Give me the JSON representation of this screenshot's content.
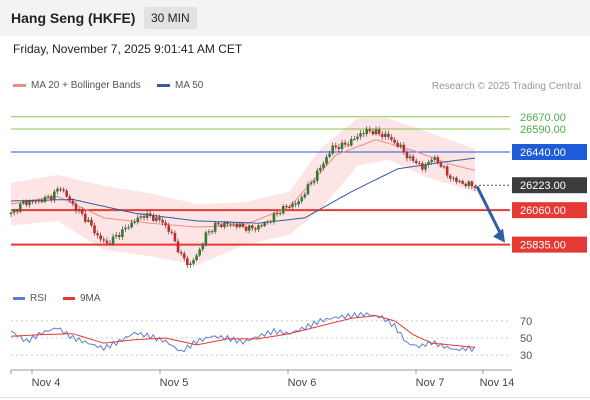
{
  "header": {
    "title": "Hang Seng (HKFE)",
    "timeframe": "30 MIN",
    "datetime": "Friday, November 7, 2025 9:01:41 AM CET"
  },
  "legend": {
    "items": [
      {
        "label": "MA 20 + Bollinger Bands",
        "color": "#f28b82"
      },
      {
        "label": "MA 50",
        "color": "#3a5a9c"
      }
    ],
    "credit": "Research © 2025 Trading Central"
  },
  "colors": {
    "up": "#2e7d32",
    "down": "#c62828",
    "band": "#fde0e0",
    "ma20": "#f28b82",
    "ma50": "#3a5a9c",
    "support": "#e53935",
    "resist_green": "#8bc34a",
    "pivot_blue": "#1e5bd6",
    "current_bg": "#3c3c3c",
    "arrow": "#2f5f9e",
    "rsi": "#5b7fd6",
    "rsi_ma": "#e53935"
  },
  "chart_data": {
    "type": "candlestick",
    "x_tick_labels": [
      "Nov 4",
      "Nov 5",
      "Nov 6",
      "Nov 7",
      "Nov 14"
    ],
    "price_range": [
      25545,
      26845
    ],
    "levels": [
      {
        "value": 26670.0,
        "label": "26670.00",
        "kind": "resistance"
      },
      {
        "value": 26590.0,
        "label": "26590.00",
        "kind": "resistance"
      },
      {
        "value": 26440.0,
        "label": "26440.00",
        "kind": "pivot"
      },
      {
        "value": 26223.0,
        "label": "26223.00",
        "kind": "current"
      },
      {
        "value": 26060.0,
        "label": "26060.00",
        "kind": "support"
      },
      {
        "value": 25835.0,
        "label": "25835.00",
        "kind": "support"
      }
    ],
    "target_arrow": {
      "from": 26215,
      "to": 25835
    },
    "anchors": [
      [
        0,
        26035
      ],
      [
        4,
        26110
      ],
      [
        9,
        26120
      ],
      [
        13,
        26150
      ],
      [
        16,
        26210
      ],
      [
        19,
        26120
      ],
      [
        22,
        26050
      ],
      [
        25,
        25985
      ],
      [
        28,
        25890
      ],
      [
        31,
        25840
      ],
      [
        34,
        25890
      ],
      [
        37,
        25940
      ],
      [
        40,
        25990
      ],
      [
        43,
        26030
      ],
      [
        46,
        26010
      ],
      [
        49,
        25985
      ],
      [
        52,
        25900
      ],
      [
        55,
        25760
      ],
      [
        58,
        25700
      ],
      [
        61,
        25800
      ],
      [
        63,
        25900
      ],
      [
        66,
        25960
      ],
      [
        69,
        25970
      ],
      [
        72,
        25970
      ],
      [
        75,
        25950
      ],
      [
        78,
        25940
      ],
      [
        81,
        25960
      ],
      [
        84,
        26000
      ],
      [
        87,
        26060
      ],
      [
        90,
        26090
      ],
      [
        93,
        26110
      ],
      [
        95,
        26180
      ],
      [
        98,
        26270
      ],
      [
        101,
        26370
      ],
      [
        104,
        26470
      ],
      [
        107,
        26480
      ],
      [
        110,
        26510
      ],
      [
        113,
        26560
      ],
      [
        116,
        26580
      ],
      [
        119,
        26560
      ],
      [
        122,
        26540
      ],
      [
        124,
        26500
      ],
      [
        126,
        26470
      ],
      [
        129,
        26390
      ],
      [
        131,
        26380
      ],
      [
        133,
        26330
      ],
      [
        136,
        26400
      ],
      [
        139,
        26360
      ],
      [
        141,
        26290
      ],
      [
        144,
        26250
      ],
      [
        147,
        26230
      ],
      [
        150,
        26220
      ]
    ],
    "candles_count": 151,
    "ma20": [
      [
        0,
        26100
      ],
      [
        15,
        26150
      ],
      [
        30,
        26010
      ],
      [
        45,
        25975
      ],
      [
        60,
        25950
      ],
      [
        75,
        25960
      ],
      [
        90,
        26080
      ],
      [
        105,
        26420
      ],
      [
        118,
        26520
      ],
      [
        130,
        26450
      ],
      [
        142,
        26360
      ],
      [
        150,
        26320
      ]
    ],
    "ma50": [
      [
        0,
        26120
      ],
      [
        20,
        26130
      ],
      [
        40,
        26040
      ],
      [
        60,
        25990
      ],
      [
        80,
        25975
      ],
      [
        95,
        26010
      ],
      [
        110,
        26180
      ],
      [
        125,
        26330
      ],
      [
        140,
        26375
      ],
      [
        150,
        26400
      ]
    ],
    "band_upper": [
      [
        0,
        26240
      ],
      [
        15,
        26290
      ],
      [
        30,
        26220
      ],
      [
        45,
        26170
      ],
      [
        60,
        26100
      ],
      [
        75,
        26110
      ],
      [
        90,
        26180
      ],
      [
        100,
        26460
      ],
      [
        112,
        26660
      ],
      [
        122,
        26660
      ],
      [
        135,
        26570
      ],
      [
        150,
        26460
      ]
    ],
    "band_lower": [
      [
        0,
        25960
      ],
      [
        15,
        25990
      ],
      [
        30,
        25800
      ],
      [
        45,
        25760
      ],
      [
        60,
        25700
      ],
      [
        75,
        25830
      ],
      [
        90,
        25900
      ],
      [
        100,
        26060
      ],
      [
        112,
        26350
      ],
      [
        122,
        26390
      ],
      [
        135,
        26270
      ],
      [
        150,
        26180
      ]
    ],
    "rsi": {
      "legend": [
        {
          "label": "RSI",
          "color": "#5b7fd6"
        },
        {
          "label": "9MA",
          "color": "#e53935"
        }
      ],
      "range": [
        15,
        85
      ],
      "ticks": [
        70,
        50,
        30
      ],
      "rsi_points": [
        [
          0,
          58
        ],
        [
          5,
          46
        ],
        [
          10,
          56
        ],
        [
          15,
          62
        ],
        [
          20,
          50
        ],
        [
          25,
          44
        ],
        [
          30,
          38
        ],
        [
          35,
          46
        ],
        [
          40,
          56
        ],
        [
          45,
          52
        ],
        [
          50,
          46
        ],
        [
          55,
          34
        ],
        [
          60,
          46
        ],
        [
          65,
          52
        ],
        [
          70,
          50
        ],
        [
          75,
          45
        ],
        [
          80,
          52
        ],
        [
          85,
          58
        ],
        [
          90,
          55
        ],
        [
          95,
          62
        ],
        [
          100,
          70
        ],
        [
          105,
          74
        ],
        [
          110,
          76
        ],
        [
          115,
          78
        ],
        [
          120,
          74
        ],
        [
          124,
          64
        ],
        [
          128,
          44
        ],
        [
          132,
          40
        ],
        [
          136,
          45
        ],
        [
          140,
          40
        ],
        [
          144,
          36
        ],
        [
          148,
          38
        ],
        [
          150,
          37
        ]
      ],
      "ma_points": [
        [
          0,
          52
        ],
        [
          10,
          54
        ],
        [
          20,
          55
        ],
        [
          30,
          44
        ],
        [
          40,
          48
        ],
        [
          50,
          50
        ],
        [
          60,
          42
        ],
        [
          70,
          49
        ],
        [
          80,
          49
        ],
        [
          90,
          55
        ],
        [
          100,
          64
        ],
        [
          110,
          73
        ],
        [
          118,
          76
        ],
        [
          124,
          70
        ],
        [
          130,
          54
        ],
        [
          136,
          44
        ],
        [
          142,
          42
        ],
        [
          150,
          39
        ]
      ]
    }
  }
}
